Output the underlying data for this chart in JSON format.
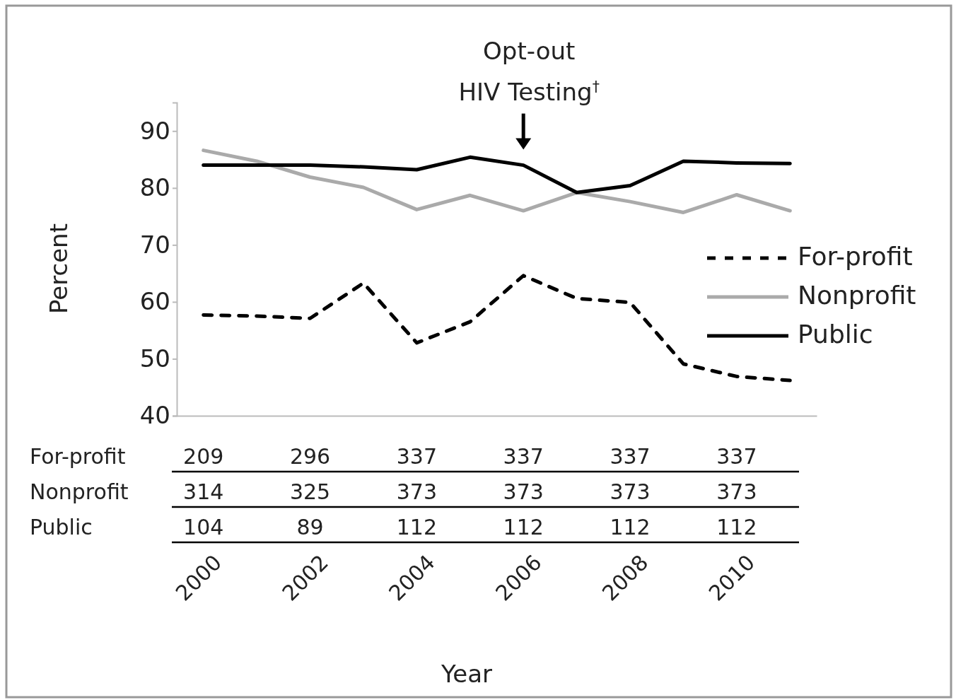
{
  "chart_data": {
    "type": "line",
    "xlabel": "Year",
    "ylabel": "Percent",
    "x": [
      2000,
      2001,
      2002,
      2003,
      2004,
      2005,
      2006,
      2007,
      2008,
      2009,
      2010,
      2011
    ],
    "xlim": [
      1999.5,
      2011.5
    ],
    "xticks": [
      2000,
      2002,
      2004,
      2006,
      2008,
      2010
    ],
    "ylim": [
      40,
      95
    ],
    "yticks": [
      40,
      50,
      60,
      70,
      80,
      90
    ],
    "series": [
      {
        "name": "For-profit",
        "color": "#000000",
        "line_style": "dashed",
        "values": [
          57.7,
          57.5,
          57.1,
          63.3,
          52.8,
          56.5,
          64.6,
          60.6,
          59.9,
          49.1,
          46.9,
          46.2
        ]
      },
      {
        "name": "Nonprofit",
        "color": "#aaaaaa",
        "line_style": "solid",
        "values": [
          86.6,
          84.7,
          81.9,
          80.1,
          76.2,
          78.7,
          76,
          79.2,
          77.6,
          75.7,
          78.8,
          76
        ]
      },
      {
        "name": "Public",
        "color": "#000000",
        "line_style": "solid",
        "values": [
          84,
          84,
          84,
          83.7,
          83.2,
          85.4,
          84,
          79.2,
          80.4,
          84.7,
          84.4,
          84.3
        ]
      }
    ],
    "legend": "right",
    "grid": false,
    "annotations": [
      {
        "text": "Opt-out HIV Testing$^{†}$",
        "x": 2006,
        "y": 84
      },
      "For-profit",
      "209",
      "296",
      "337",
      "337",
      "337",
      "337",
      "Nonprofit",
      "314",
      "325",
      "373",
      "373",
      "373",
      "373",
      "Public",
      "104",
      "89",
      "112",
      "112",
      "112",
      "112"
    ]
  }
}
